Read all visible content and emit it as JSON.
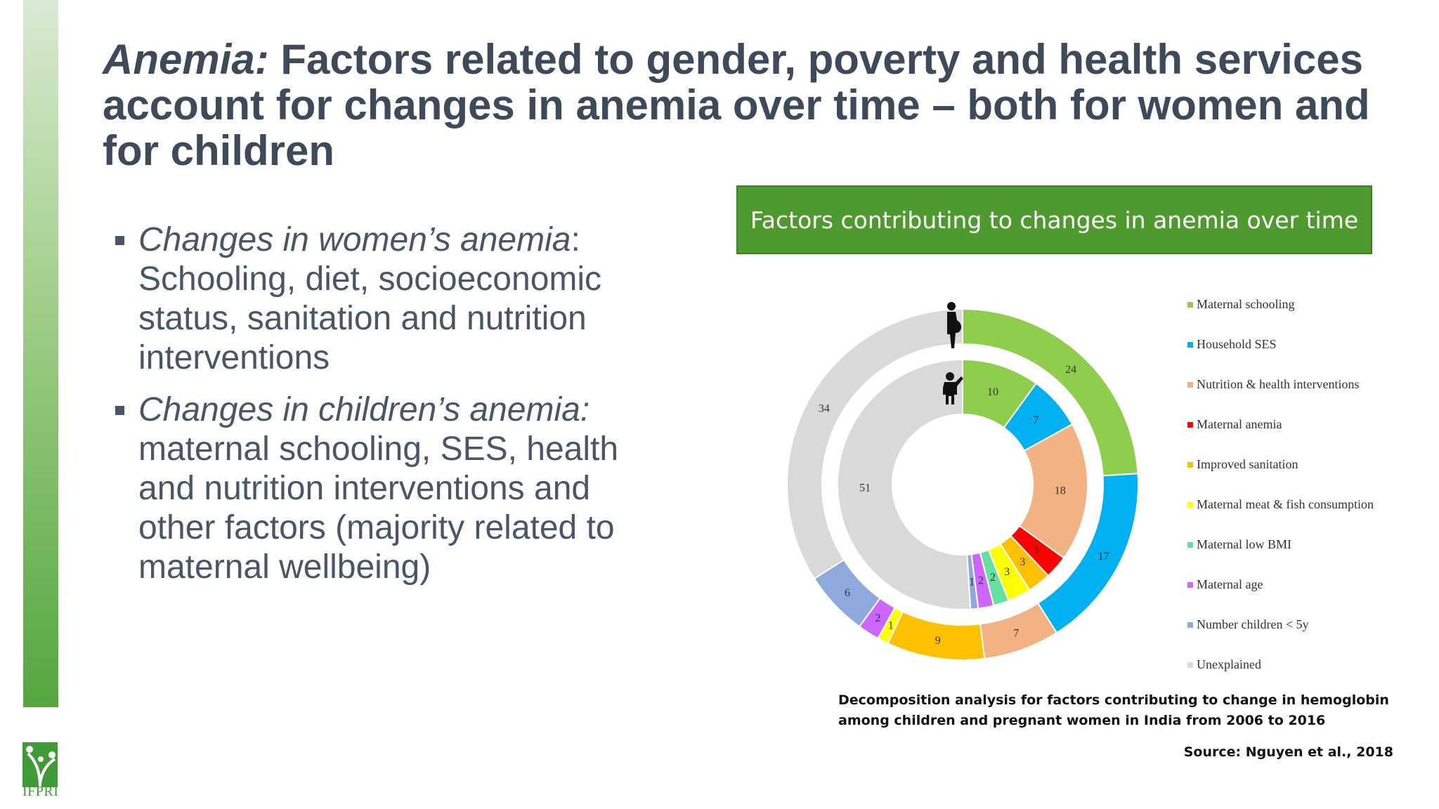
{
  "slide": {
    "title_italic": "Anemia:",
    "title_rest": " Factors related to gender, poverty and health services account for changes in anemia over time – both for women and for children",
    "bullets": [
      {
        "italic": "Changes in women’s anemia",
        "rest": ": Schooling, diet, socioeconomic status, sanitation and nutrition interventions"
      },
      {
        "italic": "Changes in children’s anemia:",
        "rest": " maternal schooling, SES, health and nutrition interventions and other factors (majority related to maternal wellbeing)"
      }
    ],
    "logo_text": "IFPRI",
    "caption": "Decomposition analysis for factors contributing to change in hemoglobin among children and pregnant women in India from 2006 to 2016",
    "source": "Source: Nguyen et al., 2018"
  },
  "chart_data": {
    "type": "pie",
    "title": "Factors contributing to changes in anemia over time",
    "legend_position": "right",
    "categories": [
      "Maternal schooling",
      "Household SES",
      "Nutrition & health interventions",
      "Maternal anemia",
      "Improved sanitation",
      "Maternal meat & fish consumption",
      "Maternal low BMI",
      "Maternal age",
      "Number children < 5y",
      "Unexplained"
    ],
    "colors": [
      "#8fce4d",
      "#00b0f0",
      "#f4b183",
      "#ff0000",
      "#ffc000",
      "#ffff00",
      "#66e0a0",
      "#cc66ff",
      "#8ea9db",
      "#d9d9d9"
    ],
    "series": [
      {
        "name": "pregnant women",
        "ring": "outer",
        "values": [
          24,
          17,
          7,
          0,
          9,
          1,
          0,
          2,
          6,
          34
        ]
      },
      {
        "name": "children",
        "ring": "inner",
        "values": [
          10,
          7,
          18,
          3,
          3,
          3,
          2,
          2,
          1,
          51
        ]
      }
    ],
    "icons": [
      "pregnant-woman-icon",
      "child-icon"
    ]
  }
}
